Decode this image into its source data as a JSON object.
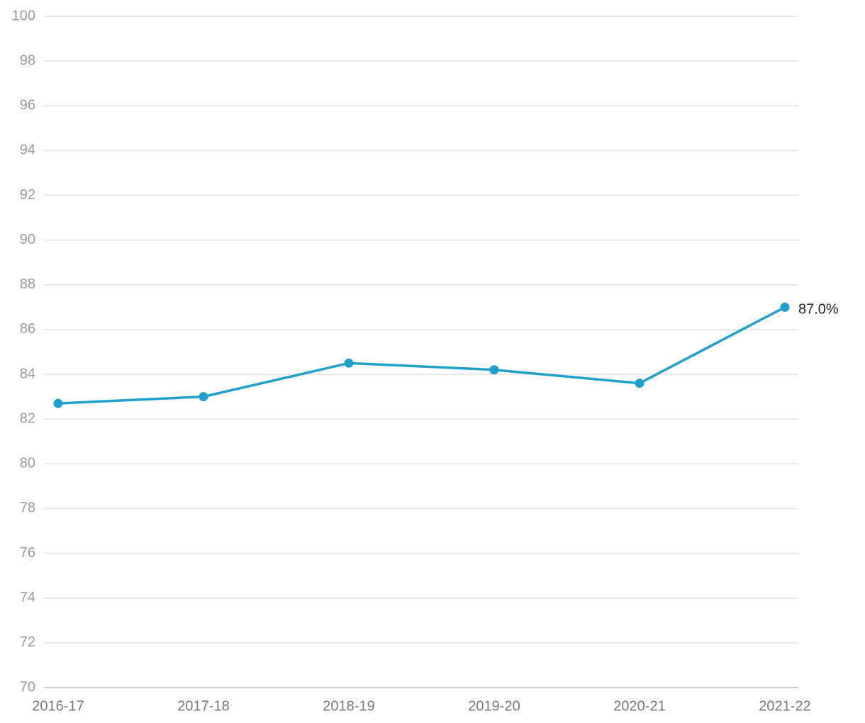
{
  "chart_data": {
    "type": "line",
    "categories": [
      "2016-17",
      "2017-18",
      "2018-19",
      "2019-20",
      "2020-21",
      "2021-22"
    ],
    "series": [
      {
        "color": "#21a0cc",
        "values": [
          82.7,
          83.0,
          84.5,
          84.2,
          83.6,
          87.0
        ],
        "value_labels": [
          null,
          null,
          null,
          null,
          null,
          "87.0%"
        ]
      }
    ],
    "ylim": [
      70,
      100
    ],
    "yticks": [
      70,
      72,
      74,
      76,
      78,
      80,
      82,
      84,
      86,
      88,
      90,
      92,
      94,
      96,
      98,
      100
    ],
    "grid": true
  }
}
